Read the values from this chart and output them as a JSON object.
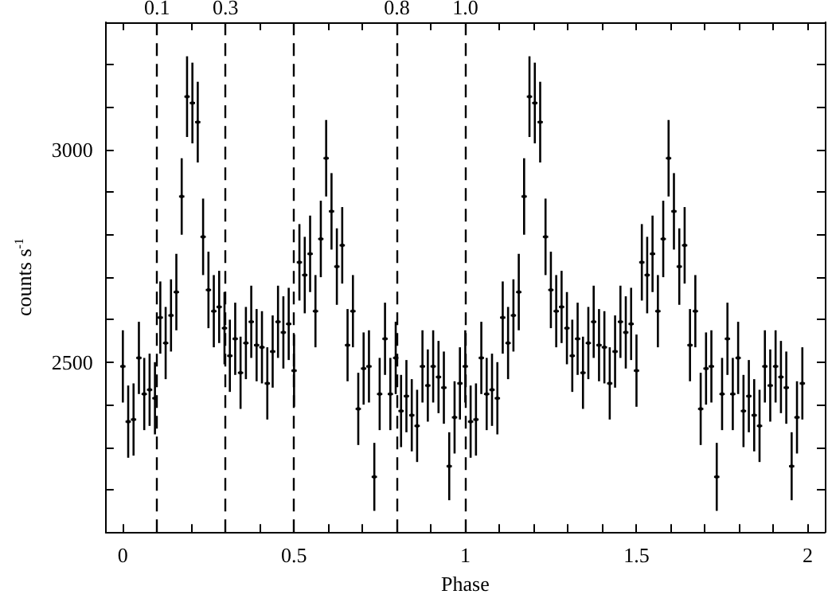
{
  "chart_data": {
    "type": "scatter",
    "xlabel": "Phase",
    "ylabel": "counts s$^{-1}$",
    "xlim": [
      -0.05,
      2.05
    ],
    "xticks": [
      0,
      {
        "value": 0.1,
        "label": null
      },
      {
        "value": 0.2,
        "label": null
      },
      {
        "value": 0.3,
        "label": null
      },
      {
        "value": 0.4,
        "label": null
      },
      0.5,
      {
        "value": 0.6,
        "label": null
      },
      {
        "value": 0.7,
        "label": null
      },
      {
        "value": 0.8,
        "label": null
      },
      {
        "value": 0.9,
        "label": null
      },
      1,
      {
        "value": 1.1,
        "label": null
      },
      {
        "value": 1.2,
        "label": null
      },
      {
        "value": 1.3,
        "label": null
      },
      {
        "value": 1.4,
        "label": null
      },
      1.5,
      {
        "value": 1.6,
        "label": null
      },
      {
        "value": 1.7,
        "label": null
      },
      {
        "value": 1.8,
        "label": null
      },
      {
        "value": 1.9,
        "label": null
      },
      2
    ],
    "ylim": [
      2100,
      3300
    ],
    "yticks": [
      {
        "value": 2200,
        "label": null
      },
      {
        "value": 2300,
        "label": null
      },
      {
        "value": 2400,
        "label": null
      },
      2500,
      {
        "value": 2600,
        "label": null
      },
      {
        "value": 2700,
        "label": null
      },
      {
        "value": 2800,
        "label": null
      },
      {
        "value": 2900,
        "label": null
      },
      3000,
      {
        "value": 3100,
        "label": null
      },
      {
        "value": 3200,
        "label": null
      }
    ],
    "grid": false,
    "ref_lines": [
      {
        "axis": "x",
        "value": 0.1,
        "label": "0.1",
        "color": "#000000",
        "line_style": "dashed"
      },
      {
        "axis": "x",
        "value": 0.3,
        "label": "0.3",
        "color": "#000000",
        "line_style": "dashed"
      },
      {
        "axis": "x",
        "value": 0.5,
        "label": null,
        "color": "#000000",
        "line_style": "dashed"
      },
      {
        "axis": "x",
        "value": 0.8,
        "label": "0.8",
        "color": "#000000",
        "line_style": "dashed"
      },
      {
        "axis": "x",
        "value": 1.0,
        "label": "1.0",
        "color": "#000000",
        "line_style": "dashed"
      }
    ],
    "series": [
      {
        "color": "#000000",
        "x": [
          0,
          0.015625,
          0.03125,
          0.046875,
          0.0625,
          0.078125,
          0.09375,
          0.109375,
          0.125,
          0.140625,
          0.15625,
          0.171875,
          0.1875,
          0.203125,
          0.21875,
          0.234375,
          0.25,
          0.265625,
          0.28125,
          0.296875,
          0.3125,
          0.328125,
          0.34375,
          0.359375,
          0.375,
          0.390625,
          0.40625,
          0.421875,
          0.4375,
          0.453125,
          0.46875,
          0.484375,
          0.5,
          0.515625,
          0.53125,
          0.546875,
          0.5625,
          0.578125,
          0.59375,
          0.609375,
          0.625,
          0.640625,
          0.65625,
          0.671875,
          0.6875,
          0.703125,
          0.71875,
          0.734375,
          0.75,
          0.765625,
          0.78125,
          0.796875,
          0.8125,
          0.828125,
          0.84375,
          0.859375,
          0.875,
          0.890625,
          0.90625,
          0.921875,
          0.9375,
          0.953125,
          0.96875,
          0.984375,
          1,
          1.015625,
          1.03125,
          1.046875,
          1.0625,
          1.078125,
          1.09375,
          1.109375,
          1.125,
          1.140625,
          1.15625,
          1.171875,
          1.1875,
          1.203125,
          1.21875,
          1.234375,
          1.25,
          1.265625,
          1.28125,
          1.296875,
          1.3125,
          1.328125,
          1.34375,
          1.359375,
          1.375,
          1.390625,
          1.40625,
          1.421875,
          1.4375,
          1.453125,
          1.46875,
          1.484375,
          1.5,
          1.515625,
          1.53125,
          1.546875,
          1.5625,
          1.578125,
          1.59375,
          1.609375,
          1.625,
          1.640625,
          1.65625,
          1.671875,
          1.6875,
          1.703125,
          1.71875,
          1.734375,
          1.75,
          1.765625,
          1.78125,
          1.796875,
          1.8125,
          1.828125,
          1.84375,
          1.859375,
          1.875,
          1.890625,
          1.90625,
          1.921875,
          1.9375,
          1.953125,
          1.96875,
          1.984375
        ],
        "values": [
          2490,
          2360,
          2365,
          2510,
          2425,
          2435,
          2415,
          2605,
          2545,
          2610,
          2665,
          2890,
          3125,
          3110,
          3065,
          2795,
          2670,
          2620,
          2630,
          2580,
          2515,
          2555,
          2475,
          2545,
          2595,
          2540,
          2535,
          2450,
          2525,
          2595,
          2570,
          2590,
          2480,
          2735,
          2705,
          2755,
          2620,
          2790,
          2980,
          2855,
          2725,
          2775,
          2540,
          2620,
          2390,
          2485,
          2490,
          2230,
          2425,
          2555,
          2425,
          2510,
          2385,
          2420,
          2375,
          2350,
          2490,
          2445,
          2490,
          2465,
          2440,
          2255,
          2370,
          2450,
          2490,
          2360,
          2365,
          2510,
          2425,
          2435,
          2415,
          2605,
          2545,
          2610,
          2665,
          2890,
          3125,
          3110,
          3065,
          2795,
          2670,
          2620,
          2630,
          2580,
          2515,
          2555,
          2475,
          2545,
          2595,
          2540,
          2535,
          2450,
          2525,
          2595,
          2570,
          2590,
          2480,
          2735,
          2705,
          2755,
          2620,
          2790,
          2980,
          2855,
          2725,
          2775,
          2540,
          2620,
          2390,
          2485,
          2490,
          2230,
          2425,
          2555,
          2425,
          2510,
          2385,
          2420,
          2375,
          2350,
          2490,
          2445,
          2490,
          2465,
          2440,
          2255,
          2370,
          2450
        ],
        "errors": [
          85,
          85,
          85,
          85,
          85,
          85,
          85,
          85,
          85,
          85,
          90,
          90,
          95,
          95,
          95,
          90,
          90,
          85,
          85,
          85,
          85,
          85,
          85,
          85,
          85,
          85,
          85,
          85,
          85,
          85,
          85,
          85,
          85,
          90,
          90,
          90,
          85,
          90,
          90,
          90,
          90,
          90,
          85,
          85,
          85,
          85,
          85,
          80,
          85,
          85,
          85,
          85,
          85,
          85,
          85,
          85,
          85,
          85,
          85,
          85,
          85,
          80,
          85,
          85,
          85,
          85,
          85,
          85,
          85,
          85,
          85,
          85,
          85,
          85,
          90,
          90,
          95,
          95,
          95,
          90,
          90,
          85,
          85,
          85,
          85,
          85,
          85,
          85,
          85,
          85,
          85,
          85,
          85,
          85,
          85,
          85,
          85,
          90,
          90,
          90,
          85,
          90,
          90,
          90,
          90,
          90,
          85,
          85,
          85,
          85,
          85,
          80,
          85,
          85,
          85,
          85,
          85,
          85,
          85,
          85,
          85,
          85,
          85,
          85,
          85,
          80,
          85,
          85
        ],
        "xerrors": [
          0.0078,
          0.0078,
          0.0078,
          0.0078,
          0.0078,
          0.0078,
          0.0078,
          0.0078,
          0.0078,
          0.0078,
          0.0078,
          0.0078,
          0.0078,
          0.0078,
          0.0078,
          0.0078,
          0.0078,
          0.0078,
          0.0078,
          0.0078,
          0.0078,
          0.0078,
          0.0078,
          0.0078,
          0.0078,
          0.0078,
          0.0078,
          0.0078,
          0.0078,
          0.0078,
          0.0078,
          0.0078,
          0.0078,
          0.0078,
          0.0078,
          0.0078,
          0.0078,
          0.0078,
          0.0078,
          0.0078,
          0.0078,
          0.0078,
          0.0078,
          0.0078,
          0.0078,
          0.0078,
          0.0078,
          0.0078,
          0.0078,
          0.0078,
          0.0078,
          0.0078,
          0.0078,
          0.0078,
          0.0078,
          0.0078,
          0.0078,
          0.0078,
          0.0078,
          0.0078,
          0.0078,
          0.0078,
          0.0078,
          0.0078,
          0.0078,
          0.0078,
          0.0078,
          0.0078,
          0.0078,
          0.0078,
          0.0078,
          0.0078,
          0.0078,
          0.0078,
          0.0078,
          0.0078,
          0.0078,
          0.0078,
          0.0078,
          0.0078,
          0.0078,
          0.0078,
          0.0078,
          0.0078,
          0.0078,
          0.0078,
          0.0078,
          0.0078,
          0.0078,
          0.0078,
          0.0078,
          0.0078,
          0.0078,
          0.0078,
          0.0078,
          0.0078,
          0.0078,
          0.0078,
          0.0078,
          0.0078,
          0.0078,
          0.0078,
          0.0078,
          0.0078,
          0.0078,
          0.0078,
          0.0078,
          0.0078,
          0.0078,
          0.0078,
          0.0078,
          0.0078,
          0.0078,
          0.0078,
          0.0078,
          0.0078,
          0.0078,
          0.0078,
          0.0078,
          0.0078,
          0.0078,
          0.0078,
          0.0078,
          0.0078,
          0.0078,
          0.0078,
          0.0078,
          0.0078
        ]
      }
    ]
  }
}
